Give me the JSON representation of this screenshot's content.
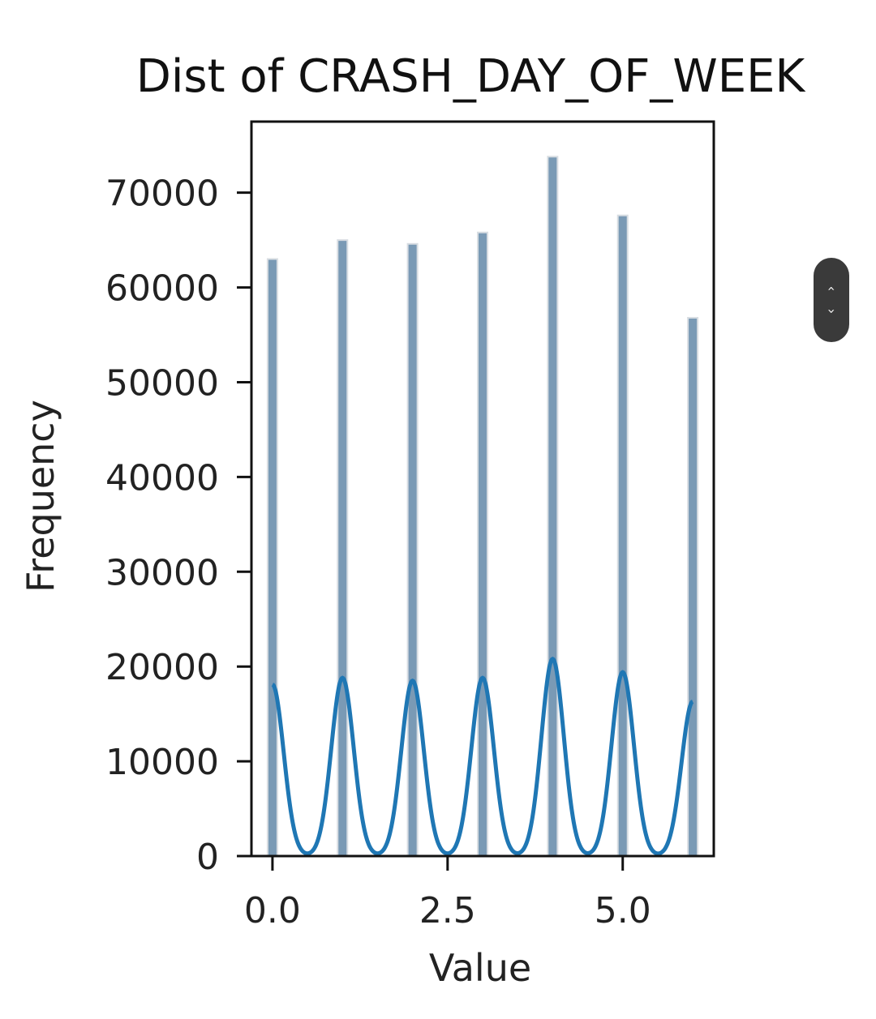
{
  "chart_data": {
    "type": "bar",
    "title": "Dist of CRASH_DAY_OF_WEEK",
    "xlabel": "Value",
    "ylabel": "Frequency",
    "categories": [
      0,
      1,
      2,
      3,
      4,
      5,
      6
    ],
    "values": [
      63000,
      65000,
      64600,
      65800,
      73800,
      67600,
      56800
    ],
    "xlim": [
      -0.3,
      6.3
    ],
    "ylim": [
      0,
      77500
    ],
    "x_ticks": [
      0.0,
      2.5,
      5.0
    ],
    "x_tick_labels": [
      "0.0",
      "2.5",
      "5.0"
    ],
    "y_ticks": [
      0,
      10000,
      20000,
      30000,
      40000,
      50000,
      60000,
      70000
    ],
    "y_tick_labels": [
      "0",
      "10000",
      "20000",
      "30000",
      "40000",
      "50000",
      "60000",
      "70000"
    ],
    "kde": {
      "peak_values": [
        18100,
        18800,
        18500,
        18800,
        20800,
        19400,
        16300
      ]
    },
    "bar_color": "#7a9ab5",
    "kde_color": "#1f77b4",
    "grid": false
  },
  "widget": {
    "up_icon": "chevron-up-icon",
    "up_glyph": "‹",
    "down_icon": "chevron-down-icon",
    "down_glyph": "›"
  }
}
